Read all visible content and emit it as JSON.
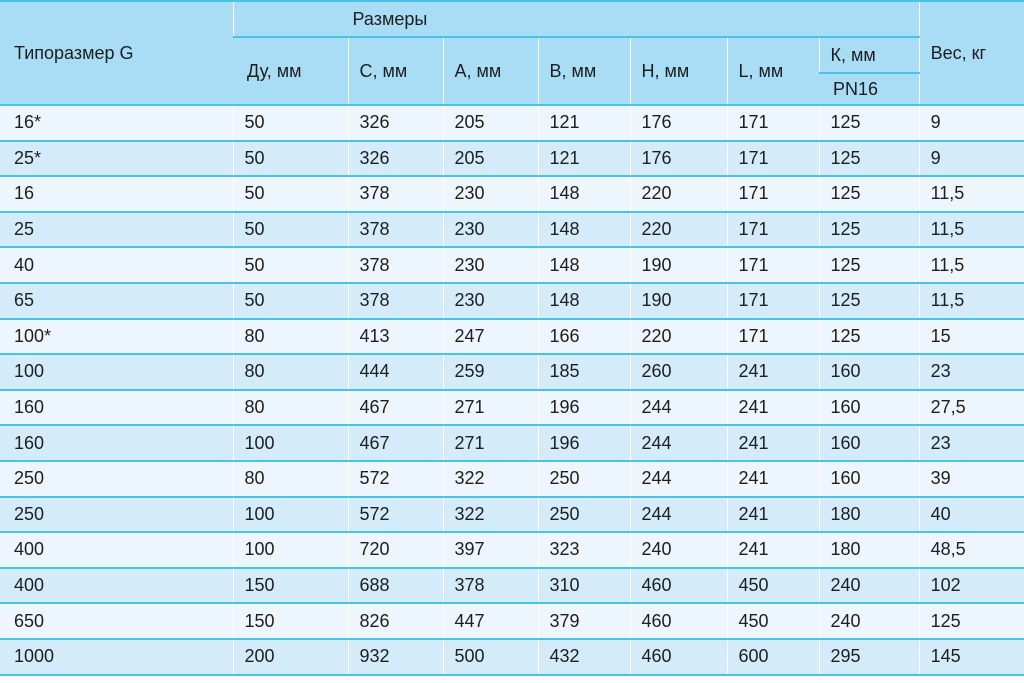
{
  "colors": {
    "header_bg": "#a8ddf5",
    "row_light_bg": "#eef6fd",
    "row_dark_bg": "#d4ecfa",
    "separator_line": "#4ac3e8",
    "text": "#1e1e20"
  },
  "table": {
    "corner_header": "Типоразмер G",
    "group_header": "Размеры",
    "weight_header": "Вес, кг",
    "dim_headers": [
      "Ду, мм",
      "С, мм",
      "А, мм",
      "В, мм",
      "Н, мм",
      "L, мм"
    ],
    "k_header": "К, мм",
    "k_subheader": "PN16",
    "rows": [
      [
        "16*",
        "50",
        "326",
        "205",
        "121",
        "176",
        "171",
        "125",
        "9"
      ],
      [
        "25*",
        "50",
        "326",
        "205",
        "121",
        "176",
        "171",
        "125",
        "9"
      ],
      [
        "16",
        "50",
        "378",
        "230",
        "148",
        "220",
        "171",
        "125",
        "11,5"
      ],
      [
        "25",
        "50",
        "378",
        "230",
        "148",
        "220",
        "171",
        "125",
        "11,5"
      ],
      [
        "40",
        "50",
        "378",
        "230",
        "148",
        "190",
        "171",
        "125",
        "11,5"
      ],
      [
        "65",
        "50",
        "378",
        "230",
        "148",
        "190",
        "171",
        "125",
        "11,5"
      ],
      [
        "100*",
        "80",
        "413",
        "247",
        "166",
        "220",
        "171",
        "125",
        "15"
      ],
      [
        "100",
        "80",
        "444",
        "259",
        "185",
        "260",
        "241",
        "160",
        "23"
      ],
      [
        "160",
        "80",
        "467",
        "271",
        "196",
        "244",
        "241",
        "160",
        "27,5"
      ],
      [
        "160",
        "100",
        "467",
        "271",
        "196",
        "244",
        "241",
        "160",
        "23"
      ],
      [
        "250",
        "80",
        "572",
        "322",
        "250",
        "244",
        "241",
        "160",
        "39"
      ],
      [
        "250",
        "100",
        "572",
        "322",
        "250",
        "244",
        "241",
        "180",
        "40"
      ],
      [
        "400",
        "100",
        "720",
        "397",
        "323",
        "240",
        "241",
        "180",
        "48,5"
      ],
      [
        "400",
        "150",
        "688",
        "378",
        "310",
        "460",
        "450",
        "240",
        "102"
      ],
      [
        "650",
        "150",
        "826",
        "447",
        "379",
        "460",
        "450",
        "240",
        "125"
      ],
      [
        "1000",
        "200",
        "932",
        "500",
        "432",
        "460",
        "600",
        "295",
        "145"
      ]
    ]
  }
}
